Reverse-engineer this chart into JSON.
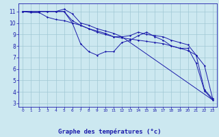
{
  "xlabel": "Graphe des températures (°c)",
  "bg_color": "#cce8f0",
  "line_color": "#1a1aaa",
  "grid_color": "#a0c8d4",
  "xlim": [
    -0.5,
    23.5
  ],
  "ylim": [
    2.7,
    11.7
  ],
  "yticks": [
    3,
    4,
    5,
    6,
    7,
    8,
    9,
    10,
    11
  ],
  "xticks": [
    0,
    1,
    2,
    3,
    4,
    5,
    6,
    7,
    8,
    9,
    10,
    11,
    12,
    13,
    14,
    15,
    16,
    17,
    18,
    19,
    20,
    21,
    22,
    23
  ],
  "series": [
    {
      "x": [
        0,
        1,
        2,
        3,
        4,
        5,
        6,
        7,
        8,
        9,
        10,
        11,
        12,
        13,
        14,
        15,
        16,
        17,
        18,
        19,
        20,
        21,
        22,
        23
      ],
      "y": [
        11,
        11,
        11,
        11,
        11,
        11,
        10,
        8.2,
        7.5,
        7.2,
        7.5,
        7.5,
        8.3,
        8.5,
        8.9,
        9.2,
        8.8,
        8.5,
        8.0,
        7.8,
        7.8,
        6.5,
        4.1,
        3.3
      ]
    },
    {
      "x": [
        0,
        1,
        2,
        3,
        4,
        5,
        6,
        7,
        8,
        9,
        10,
        11,
        12,
        13,
        14,
        15,
        16,
        17,
        18,
        19,
        20,
        21,
        22,
        23
      ],
      "y": [
        11,
        11,
        11,
        11,
        11,
        11,
        10.2,
        9.8,
        9.5,
        9.3,
        9.1,
        8.8,
        8.8,
        8.9,
        9.2,
        9.0,
        8.9,
        8.8,
        8.5,
        8.3,
        8.1,
        7.2,
        4.2,
        3.4
      ]
    },
    {
      "x": [
        0,
        4,
        5,
        6,
        7,
        8,
        9,
        10,
        11,
        12,
        23
      ],
      "y": [
        11,
        11,
        11.2,
        10.8,
        10.0,
        9.8,
        9.5,
        9.3,
        9.1,
        8.8,
        3.3
      ]
    },
    {
      "x": [
        0,
        1,
        2,
        3,
        4,
        5,
        6,
        7,
        8,
        9,
        10,
        11,
        12,
        13,
        14,
        15,
        16,
        17,
        18,
        19,
        20,
        21,
        22,
        23
      ],
      "y": [
        11,
        10.9,
        10.9,
        10.5,
        10.3,
        10.2,
        10.0,
        9.8,
        9.5,
        9.2,
        9.0,
        8.8,
        8.7,
        8.6,
        8.5,
        8.4,
        8.3,
        8.2,
        8.0,
        7.8,
        7.6,
        7.2,
        6.3,
        3.4
      ]
    }
  ]
}
